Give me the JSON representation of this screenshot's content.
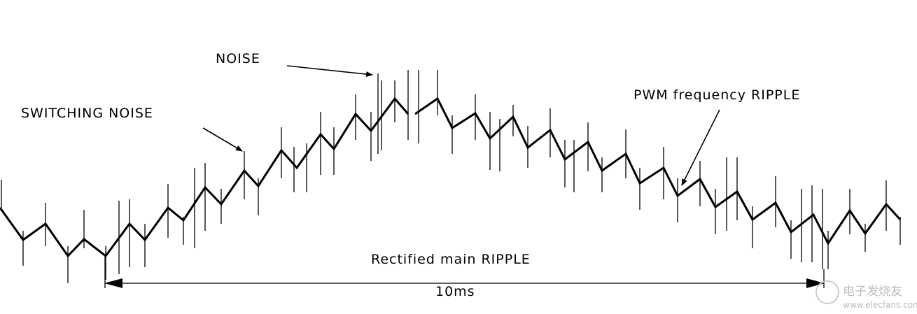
{
  "labels": {
    "noise": "NOISE",
    "switching_noise": "SWITCHING NOISE",
    "pwm_ripple": "PWM frequency RIPPLE",
    "main_ripple": "Rectified main RIPPLE",
    "period": "10ms"
  },
  "watermark": {
    "name": "电子发烧友",
    "url": "www.elecfans.com"
  }
}
